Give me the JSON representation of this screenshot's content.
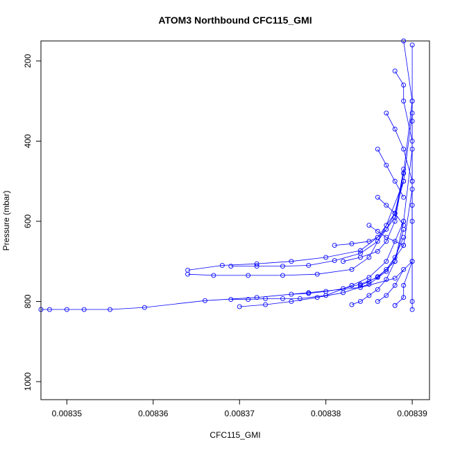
{
  "chart_data": {
    "type": "line",
    "title": "ATOM3 Northbound CFC115_GMI",
    "xlabel": "CFC115_GMI",
    "ylabel": "Pressure (mbar)",
    "x_ticks": [
      0.00835,
      0.00836,
      0.00837,
      0.00838,
      0.00839
    ],
    "x_tick_labels": [
      "0.00835",
      "0.00836",
      "0.00837",
      "0.00838",
      "0.00839"
    ],
    "y_ticks": [
      200,
      400,
      600,
      800,
      1000
    ],
    "y_tick_labels": [
      "200",
      "400",
      "600",
      "800",
      "1000"
    ],
    "xlim": [
      0.008347,
      0.008392
    ],
    "ylim": [
      1045,
      150
    ],
    "y_reversed": true,
    "grid": false,
    "series_color": "#0000ff",
    "marker": "open-circle",
    "series": [
      {
        "x": [
          0.008347,
          0.008348,
          0.00835,
          0.008352,
          0.008355,
          0.008359,
          0.008366,
          0.008372,
          0.008378,
          0.008384,
          0.008388,
          0.00839,
          0.00839
        ],
        "y": [
          820,
          820,
          820,
          820,
          820,
          815,
          798,
          790,
          778,
          765,
          742,
          700,
          560
        ]
      },
      {
        "x": [
          0.008364,
          0.008368,
          0.008372,
          0.008376,
          0.00838,
          0.008384,
          0.008386,
          0.008388,
          0.008389,
          0.00839
        ],
        "y": [
          722,
          710,
          706,
          700,
          690,
          673,
          640,
          580,
          480,
          300
        ]
      },
      {
        "x": [
          0.008364,
          0.008367,
          0.008371,
          0.008375,
          0.008379,
          0.008383,
          0.008385,
          0.008387,
          0.008389,
          0.00839
        ],
        "y": [
          732,
          735,
          735,
          735,
          732,
          720,
          690,
          610,
          500,
          330
        ]
      },
      {
        "x": [
          0.008369,
          0.008372,
          0.008375,
          0.008378,
          0.008381,
          0.008384,
          0.008386,
          0.008388,
          0.008389
        ],
        "y": [
          712,
          712,
          712,
          710,
          698,
          680,
          650,
          590,
          470
        ]
      },
      {
        "x": [
          0.008369,
          0.008371,
          0.008373,
          0.008375,
          0.008377,
          0.00838,
          0.008383,
          0.008385,
          0.008387,
          0.008389,
          0.00839
        ],
        "y": [
          795,
          795,
          793,
          793,
          793,
          785,
          760,
          740,
          700,
          600,
          420
        ]
      },
      {
        "x": [
          0.00837,
          0.008373,
          0.008376,
          0.008379,
          0.008382,
          0.008385,
          0.008387,
          0.008389,
          0.00839
        ],
        "y": [
          813,
          808,
          800,
          790,
          778,
          757,
          725,
          660,
          520
        ]
      },
      {
        "x": [
          0.008376,
          0.008378,
          0.00838,
          0.008382,
          0.008384,
          0.008386,
          0.008388,
          0.008389
        ],
        "y": [
          782,
          780,
          775,
          768,
          757,
          740,
          700,
          600
        ]
      },
      {
        "x": [
          0.008381,
          0.008383,
          0.008385,
          0.008386,
          0.008387,
          0.008388,
          0.008389
        ],
        "y": [
          660,
          656,
          650,
          640,
          620,
          580,
          500
        ]
      },
      {
        "x": [
          0.008382,
          0.008384,
          0.008386,
          0.008387,
          0.008388,
          0.008389
        ],
        "y": [
          700,
          690,
          675,
          650,
          600,
          480
        ]
      },
      {
        "x": [
          0.008383,
          0.008384,
          0.008385,
          0.008386,
          0.008387,
          0.008388,
          0.008389
        ],
        "y": [
          808,
          800,
          785,
          770,
          745,
          700,
          620
        ]
      },
      {
        "x": [
          0.008384,
          0.008385,
          0.008386,
          0.008387,
          0.008388,
          0.008389
        ],
        "y": [
          760,
          750,
          738,
          720,
          690,
          640
        ]
      },
      {
        "x": [
          0.008386,
          0.008387,
          0.008388,
          0.008389
        ],
        "y": [
          800,
          785,
          760,
          720
        ]
      },
      {
        "x": [
          0.008388,
          0.008389,
          0.008389,
          0.00839
        ],
        "y": [
          810,
          790,
          760,
          700
        ]
      },
      {
        "x": [
          0.008389,
          0.00839,
          0.00839,
          0.00839
        ],
        "y": [
          150,
          300,
          500,
          820
        ]
      },
      {
        "x": [
          0.00839,
          0.00839,
          0.00839,
          0.00839
        ],
        "y": [
          160,
          350,
          600,
          800
        ]
      },
      {
        "x": [
          0.008388,
          0.008389,
          0.008389,
          0.00839
        ],
        "y": [
          225,
          260,
          300,
          400
        ]
      },
      {
        "x": [
          0.008387,
          0.008388,
          0.008389,
          0.00839
        ],
        "y": [
          330,
          370,
          420,
          500
        ]
      },
      {
        "x": [
          0.008386,
          0.008387,
          0.008388,
          0.008389
        ],
        "y": [
          420,
          460,
          500,
          540
        ]
      },
      {
        "x": [
          0.008386,
          0.008387,
          0.008388,
          0.008389
        ],
        "y": [
          540,
          560,
          580,
          610
        ]
      },
      {
        "x": [
          0.008385,
          0.008386,
          0.008387,
          0.008388,
          0.008389
        ],
        "y": [
          610,
          625,
          640,
          650,
          660
        ]
      }
    ]
  }
}
